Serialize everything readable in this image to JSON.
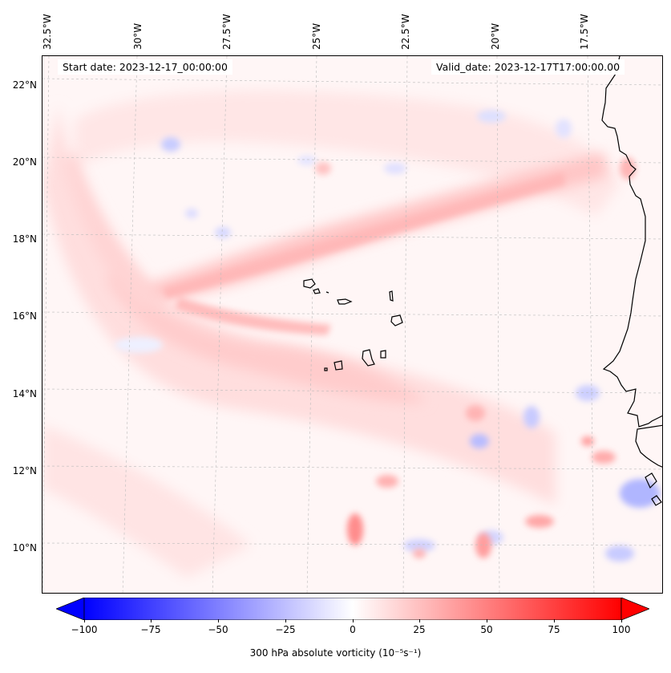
{
  "map": {
    "start_date_label": "Start date: 2023-12-17_00:00:00",
    "valid_date_label": "Valid_date: 2023-12-17T17:00:00.00",
    "lon_labels": [
      "32.5°W",
      "30°W",
      "27.5°W",
      "25°W",
      "22.5°W",
      "20°W",
      "17.5°W"
    ],
    "lat_labels": [
      "22°N",
      "20°N",
      "18°N",
      "16°N",
      "14°N",
      "12°N",
      "10°N"
    ],
    "gridlines": true,
    "coastline_color": "#000000"
  },
  "colorbar": {
    "label": "300 hPa absolute vorticity (10⁻⁵s⁻¹)",
    "ticks": [
      "−100",
      "−75",
      "−50",
      "−25",
      "0",
      "25",
      "50",
      "75",
      "100"
    ],
    "range": [
      -100,
      100
    ],
    "colormap": "bwr",
    "low_color": "#0000ff",
    "mid_color": "#ffffff",
    "high_color": "#ff0000"
  }
}
